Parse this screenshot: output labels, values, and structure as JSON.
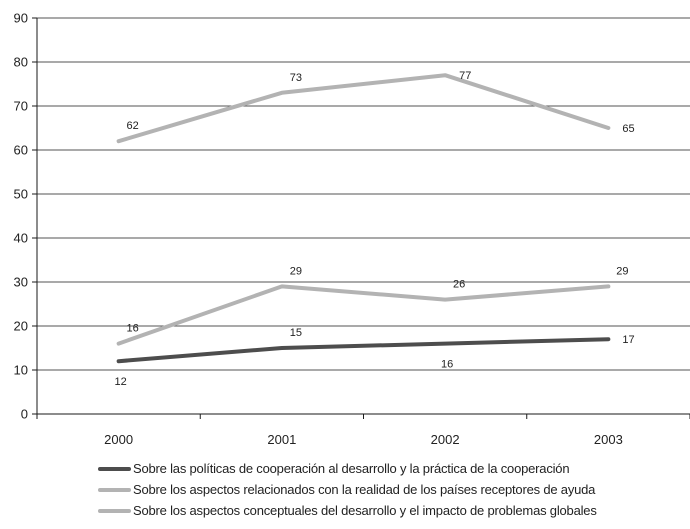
{
  "chart_data": {
    "type": "line",
    "categories": [
      "2000",
      "2001",
      "2002",
      "2003"
    ],
    "ylim": [
      0,
      90
    ],
    "yticks": [
      0,
      10,
      20,
      30,
      40,
      50,
      60,
      70,
      80,
      90
    ],
    "grid": true,
    "legend_position": "bottom",
    "series": [
      {
        "name": "Sobre las políticas de cooperación al desarrollo y la práctica de la cooperación",
        "values": [
          12,
          15,
          16,
          17
        ],
        "color": "#4d4d4d",
        "label_placement": [
          "below",
          "above",
          "below",
          "right"
        ]
      },
      {
        "name": "Sobre los aspectos relacionados con la realidad de los países receptores de ayuda",
        "values": [
          16,
          29,
          26,
          29
        ],
        "color": "#b3b3b3",
        "label_placement": [
          "above",
          "above",
          "above",
          "above"
        ]
      },
      {
        "name": "Sobre los aspectos conceptuales del desarrollo y el impacto de problemas globales",
        "values": [
          62,
          73,
          77,
          65
        ],
        "color": "#b3b3b3",
        "label_placement": [
          "above",
          "above",
          "right",
          "right"
        ]
      }
    ]
  }
}
